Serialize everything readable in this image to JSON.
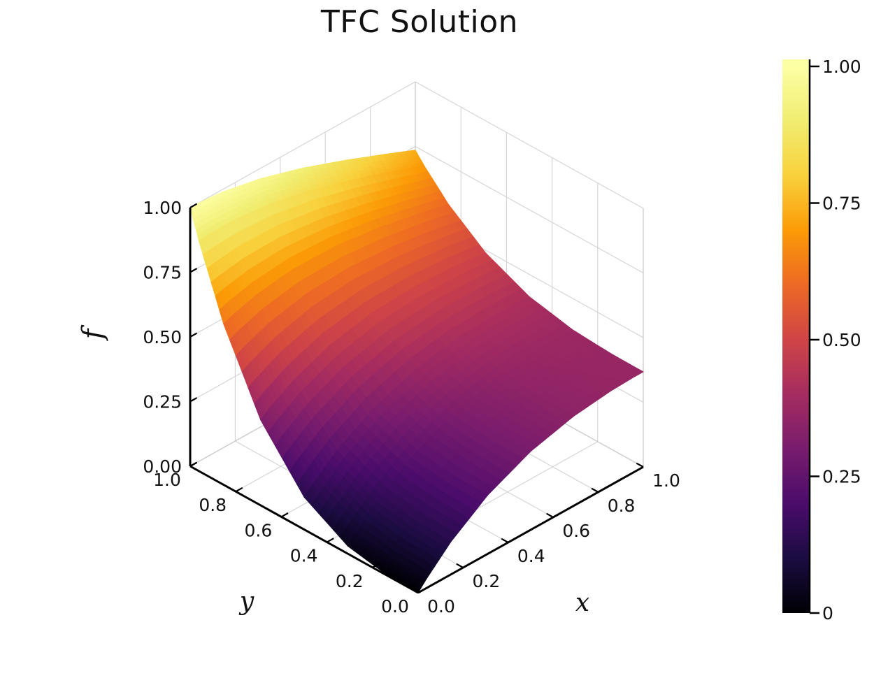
{
  "title": "TFC Solution",
  "axes": {
    "x": {
      "label": "x",
      "tick_labels": [
        "0.0",
        "0.2",
        "0.4",
        "0.6",
        "0.8",
        "1.0"
      ],
      "tick_values": [
        0,
        0.2,
        0.4,
        0.6,
        0.8,
        1
      ]
    },
    "y": {
      "label": "y",
      "tick_labels": [
        "0.0",
        "0.2",
        "0.4",
        "0.6",
        "0.8",
        "1.0"
      ],
      "tick_values": [
        0,
        0.2,
        0.4,
        0.6,
        0.8,
        1
      ]
    },
    "z": {
      "label": "f",
      "tick_labels": [
        "0.00",
        "0.25",
        "0.50",
        "0.75",
        "1.00"
      ],
      "tick_values": [
        0,
        0.25,
        0.5,
        0.75,
        1
      ]
    }
  },
  "colorbar": {
    "tick_labels": [
      "0",
      "0.25",
      "0.50",
      "0.75",
      "1.00"
    ],
    "tick_values": [
      0,
      0.25,
      0.5,
      0.75,
      1
    ]
  },
  "chart_data": {
    "type": "surface",
    "title": "TFC Solution",
    "xlabel": "x",
    "ylabel": "y",
    "zlabel": "f",
    "xlim": [
      0,
      1
    ],
    "ylim": [
      0,
      1
    ],
    "zlim": [
      0,
      1
    ],
    "grid": true,
    "colormap": "inferno",
    "colormap_stops": [
      [
        0.0,
        "#000004"
      ],
      [
        0.1,
        "#1b0c41"
      ],
      [
        0.2,
        "#4a0c6b"
      ],
      [
        0.3,
        "#781c6d"
      ],
      [
        0.4,
        "#a52c60"
      ],
      [
        0.5,
        "#cf4446"
      ],
      [
        0.6,
        "#ed6925"
      ],
      [
        0.7,
        "#fb9b06"
      ],
      [
        0.8,
        "#f8d13c"
      ],
      [
        0.9,
        "#f1ed71"
      ],
      [
        1.0,
        "#fcffa4"
      ]
    ],
    "x_nodes": [
      0,
      0.0381,
      0.1464,
      0.3087,
      0.5,
      0.6913,
      0.8536,
      0.9619,
      1
    ],
    "y_nodes": [
      0,
      0.0381,
      0.1464,
      0.3087,
      0.5,
      0.6913,
      0.8536,
      0.9619,
      1
    ],
    "z_grid": [
      [
        0.0,
        0.0366,
        0.1265,
        0.2267,
        0.3033,
        0.3463,
        0.3636,
        0.3676,
        0.3679
      ],
      [
        0.0001,
        0.0367,
        0.1266,
        0.2268,
        0.3034,
        0.3464,
        0.3637,
        0.3677,
        0.3679
      ],
      [
        0.0031,
        0.0397,
        0.1292,
        0.229,
        0.3052,
        0.3478,
        0.3649,
        0.3689,
        0.3691
      ],
      [
        0.0294,
        0.065,
        0.1519,
        0.2483,
        0.3211,
        0.361,
        0.3761,
        0.3789,
        0.3787
      ],
      [
        0.125,
        0.157,
        0.2345,
        0.3185,
        0.3791,
        0.4089,
        0.4168,
        0.4154,
        0.4139
      ],
      [
        0.3304,
        0.3548,
        0.4119,
        0.4694,
        0.5036,
        0.5118,
        0.5043,
        0.4939,
        0.4895
      ],
      [
        0.622,
        0.6355,
        0.6637,
        0.6835,
        0.6805,
        0.6578,
        0.6285,
        0.6054,
        0.5967
      ],
      [
        0.8901,
        0.8936,
        0.8953,
        0.8804,
        0.8431,
        0.7921,
        0.7426,
        0.7078,
        0.6954
      ],
      [
        1.0,
        0.9994,
        0.9903,
        0.9611,
        0.9098,
        0.8472,
        0.7895,
        0.7498,
        0.7358
      ]
    ]
  }
}
